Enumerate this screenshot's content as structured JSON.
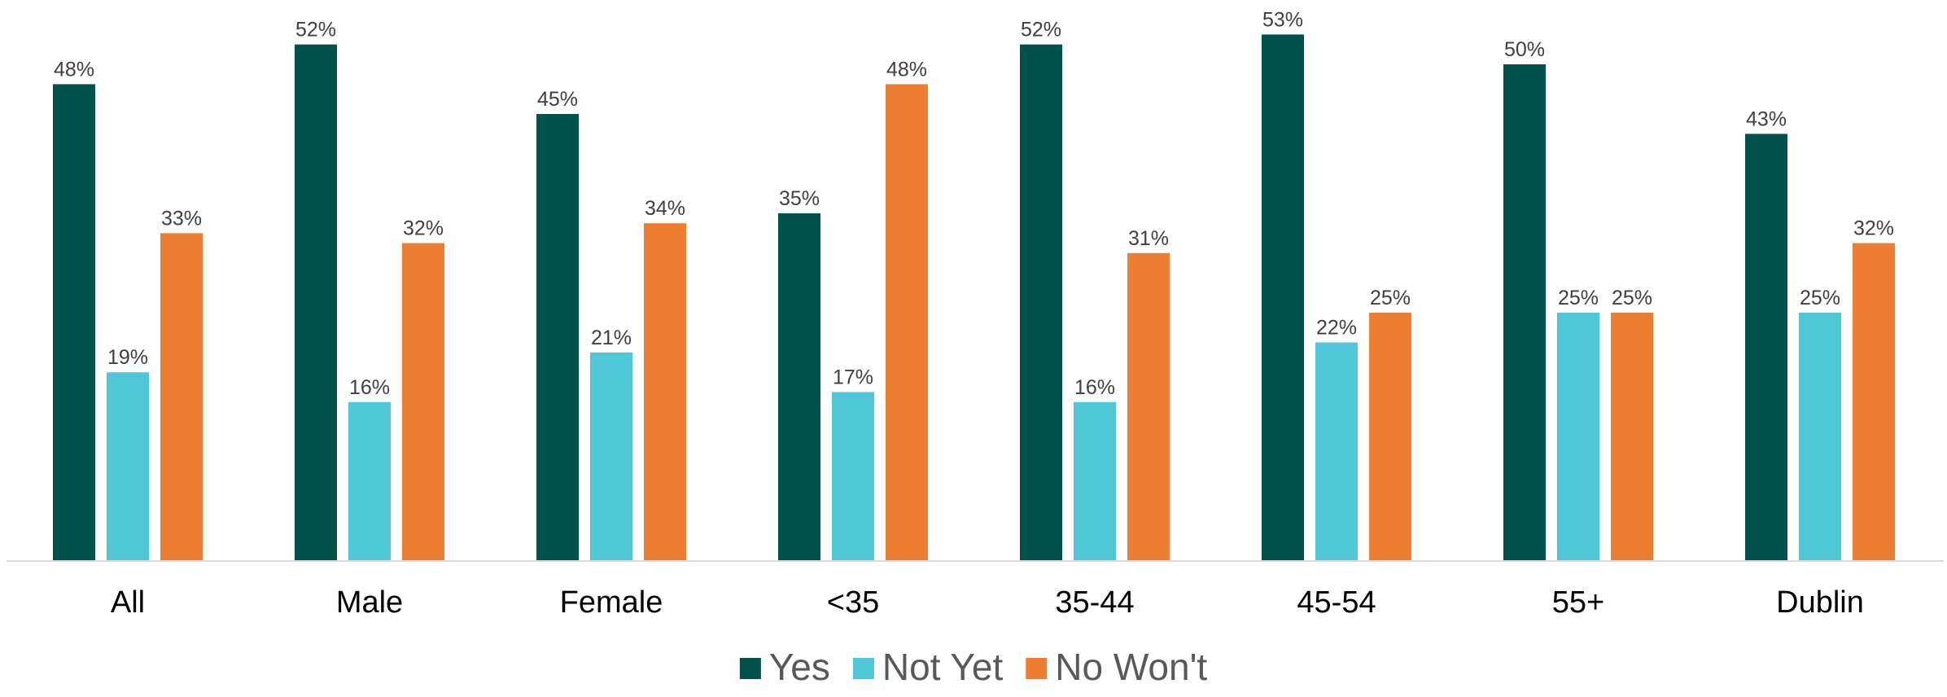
{
  "chart_data": {
    "type": "bar",
    "categories": [
      "All",
      "Male",
      "Female",
      "<35",
      "35-44",
      "45-54",
      "55+",
      "Dublin"
    ],
    "series": [
      {
        "name": "Yes",
        "color": "#00524B",
        "values": [
          48,
          52,
          45,
          35,
          52,
          53,
          50,
          43
        ]
      },
      {
        "name": "Not Yet",
        "color": "#4FC7D6",
        "values": [
          19,
          16,
          21,
          17,
          16,
          22,
          25,
          25
        ]
      },
      {
        "name": "No Won't",
        "color": "#ED7D31",
        "values": [
          33,
          32,
          34,
          48,
          31,
          25,
          25,
          32
        ]
      }
    ],
    "value_suffix": "%",
    "ylim": [
      0,
      55
    ],
    "grid": false,
    "legend_position": "bottom",
    "title": "",
    "xlabel": "",
    "ylabel": ""
  }
}
